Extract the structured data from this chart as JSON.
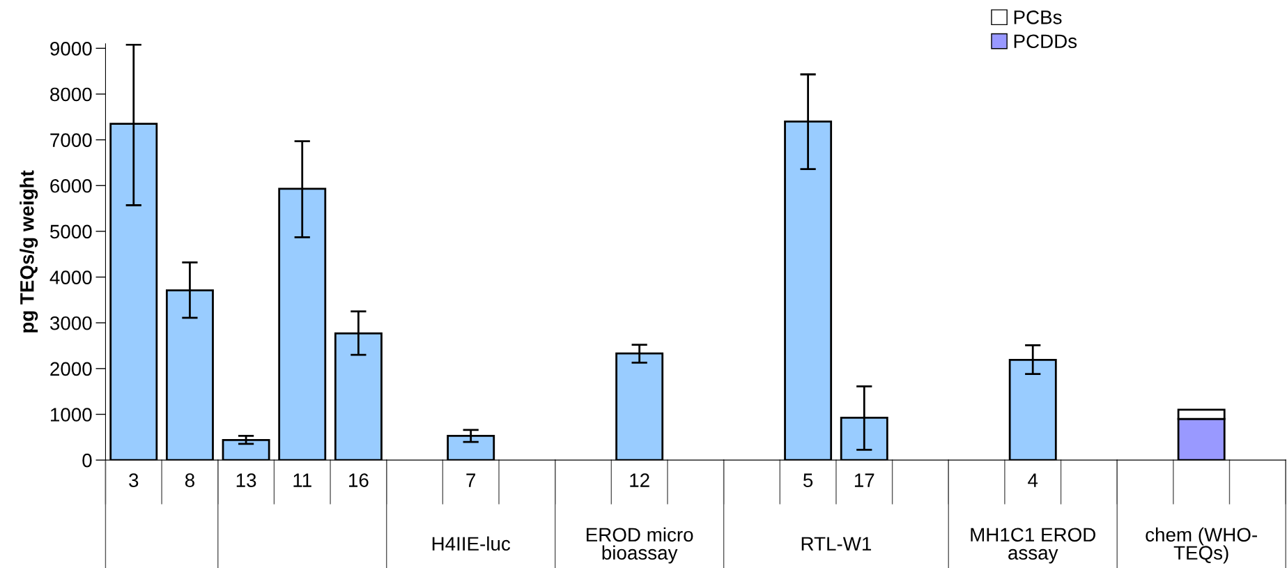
{
  "chart_data": {
    "type": "bar",
    "ylabel": "pg TEQs/g weight",
    "categories": [
      "3",
      "8",
      "13",
      "11",
      "16",
      null,
      "7",
      null,
      null,
      "12",
      null,
      null,
      "5",
      "17",
      null,
      null,
      "4",
      null,
      null,
      null,
      null
    ],
    "series": [
      {
        "color": "#99ccff",
        "values": [
          7350,
          3710,
          440,
          5930,
          2770,
          null,
          530,
          null,
          null,
          2330,
          null,
          null,
          7400,
          925,
          null,
          null,
          2190,
          null,
          null,
          null,
          null
        ],
        "errors": [
          [
            5570,
            9080
          ],
          [
            3110,
            4320
          ],
          [
            355,
            530
          ],
          [
            4870,
            6970
          ],
          [
            2300,
            3250
          ],
          null,
          [
            395,
            660
          ],
          null,
          null,
          [
            2130,
            2520
          ],
          null,
          null,
          [
            6360,
            8430
          ],
          [
            225,
            1610
          ],
          null,
          null,
          [
            1880,
            2510
          ],
          null,
          null,
          null,
          null
        ]
      },
      {
        "name": "PCDDs",
        "color": "#9999ff",
        "values": [
          null,
          null,
          null,
          null,
          null,
          null,
          null,
          null,
          null,
          null,
          null,
          null,
          null,
          null,
          null,
          null,
          null,
          null,
          null,
          900,
          null
        ]
      },
      {
        "name": "PCBs",
        "color": "#ffffff",
        "values": [
          null,
          null,
          null,
          null,
          null,
          null,
          null,
          null,
          null,
          null,
          null,
          null,
          null,
          null,
          null,
          null,
          null,
          null,
          null,
          200,
          null
        ]
      }
    ],
    "stacked": true,
    "ylim": [
      0,
      9100
    ],
    "yticks": [
      0,
      1000,
      2000,
      3000,
      4000,
      5000,
      6000,
      7000,
      8000,
      9000
    ],
    "grid": false,
    "legend": "top right",
    "annotations": [
      "H4IIE-luc",
      "EROD micro bioassay",
      "RTL-W1",
      "MH1C1 EROD assay",
      "chem (WHO-TEQs)"
    ]
  }
}
